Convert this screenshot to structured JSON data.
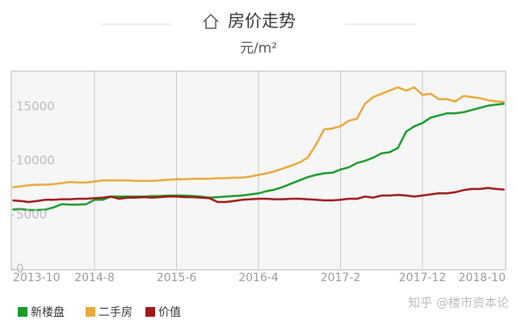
{
  "chart_data": {
    "type": "line",
    "title": "房价走势",
    "subtitle": "元/m²",
    "watermark": "知乎 @楼市资本论",
    "categories": [
      "2013-10",
      null,
      null,
      null,
      null,
      null,
      null,
      null,
      null,
      null,
      "2014-8",
      null,
      null,
      null,
      null,
      null,
      null,
      null,
      null,
      null,
      "2015-6",
      null,
      null,
      null,
      null,
      null,
      null,
      null,
      null,
      null,
      "2016-4",
      null,
      null,
      null,
      null,
      null,
      null,
      null,
      null,
      null,
      "2017-2",
      null,
      null,
      null,
      null,
      null,
      null,
      null,
      null,
      null,
      "2017-12",
      null,
      null,
      null,
      null,
      null,
      null,
      null,
      null,
      null,
      "2018-10"
    ],
    "series": [
      {
        "name": "新楼盘",
        "color": "#1a9b2a",
        "values": [
          5500,
          5550,
          5450,
          5450,
          5500,
          5700,
          6000,
          5950,
          5950,
          6000,
          6400,
          6400,
          6700,
          6700,
          6700,
          6700,
          6700,
          6750,
          6750,
          6800,
          6800,
          6800,
          6750,
          6700,
          6600,
          6650,
          6700,
          6750,
          6800,
          6900,
          7000,
          7200,
          7350,
          7600,
          7900,
          8200,
          8500,
          8700,
          8850,
          8900,
          9200,
          9400,
          9800,
          10000,
          10300,
          10700,
          10800,
          11200,
          12700,
          13200,
          13500,
          14000,
          14200,
          14400,
          14400,
          14500,
          14700,
          14900,
          15100,
          15200,
          15300
        ]
      },
      {
        "name": "二手房",
        "color": "#e8a93a",
        "values": [
          7550,
          7650,
          7750,
          7800,
          7800,
          7850,
          7950,
          8050,
          8000,
          8000,
          8100,
          8200,
          8200,
          8200,
          8200,
          8150,
          8150,
          8150,
          8200,
          8250,
          8300,
          8300,
          8350,
          8350,
          8350,
          8400,
          8400,
          8450,
          8450,
          8550,
          8700,
          8850,
          9050,
          9300,
          9550,
          9850,
          10300,
          11500,
          12900,
          13000,
          13200,
          13700,
          13900,
          15300,
          15900,
          16200,
          16500,
          16800,
          16500,
          16800,
          16100,
          16200,
          15700,
          15700,
          15500,
          16000,
          15900,
          15800,
          15600,
          15500,
          15450
        ]
      },
      {
        "name": "价值",
        "color": "#a01818",
        "values": [
          6350,
          6300,
          6200,
          6300,
          6400,
          6400,
          6450,
          6450,
          6500,
          6500,
          6550,
          6600,
          6700,
          6500,
          6600,
          6600,
          6650,
          6600,
          6650,
          6700,
          6700,
          6650,
          6650,
          6600,
          6550,
          6200,
          6200,
          6300,
          6400,
          6450,
          6500,
          6500,
          6450,
          6450,
          6500,
          6500,
          6450,
          6400,
          6350,
          6350,
          6400,
          6500,
          6500,
          6700,
          6600,
          6800,
          6800,
          6850,
          6800,
          6700,
          6800,
          6900,
          7000,
          7000,
          7100,
          7300,
          7400,
          7400,
          7500,
          7400,
          7350
        ]
      }
    ],
    "ylim": [
      0,
      18300
    ],
    "yticks": [
      0,
      5000,
      10000,
      15000
    ]
  }
}
